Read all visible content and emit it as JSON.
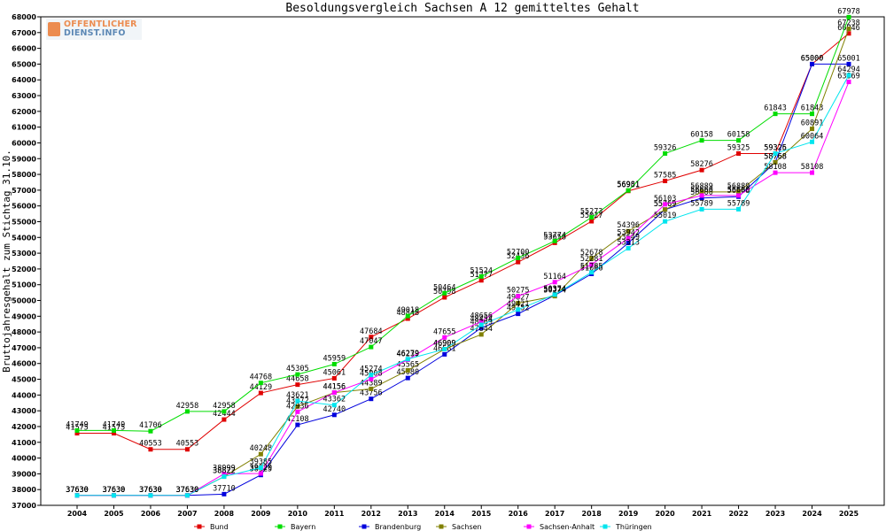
{
  "chart_data": {
    "type": "line",
    "title": "Besoldungsvergleich Sachsen A 12 gemitteltes Gehalt",
    "ylabel": "Bruttojahresgehalt zum Stichtag 31.10.",
    "xlabel": "",
    "ylim": [
      37000,
      68000
    ],
    "yticks": [
      37000,
      38000,
      39000,
      40000,
      41000,
      42000,
      43000,
      44000,
      45000,
      46000,
      47000,
      48000,
      49000,
      50000,
      51000,
      52000,
      53000,
      54000,
      55000,
      56000,
      57000,
      58000,
      59000,
      60000,
      61000,
      62000,
      63000,
      64000,
      65000,
      66000,
      67000,
      68000
    ],
    "categories": [
      "2004",
      "2005",
      "2006",
      "2007",
      "2008",
      "2009",
      "2010",
      "2011",
      "2012",
      "2013",
      "2014",
      "2015",
      "2016",
      "2017",
      "2018",
      "2019",
      "2020",
      "2021",
      "2022",
      "2023",
      "2024",
      "2025"
    ],
    "grid": false,
    "legend_position": "bottom",
    "series": [
      {
        "name": "Bund",
        "color": "#e00000",
        "values": [
          41575,
          41575,
          40553,
          40553,
          42444,
          44129,
          44658,
          45061,
          47684,
          48848,
          50198,
          51277,
          52436,
          53658,
          55027,
          56951,
          57585,
          58276,
          59325,
          59325,
          65000,
          66946
        ]
      },
      {
        "name": "Bayern",
        "color": "#00dd00",
        "values": [
          41749,
          41749,
          41706,
          42958,
          42958,
          44768,
          45305,
          45959,
          47047,
          49018,
          50464,
          51524,
          52700,
          53774,
          55273,
          56981,
          59326,
          60158,
          60158,
          61843,
          61843,
          67978
        ]
      },
      {
        "name": "Brandenburg",
        "color": "#0000dd",
        "values": [
          37630,
          37630,
          37630,
          37630,
          37710,
          38925,
          42108,
          42740,
          43756,
          45080,
          46581,
          48269,
          49152,
          50324,
          51686,
          53649,
          55769,
          56500,
          56588,
          58768,
          65000,
          65001
        ]
      },
      {
        "name": "Sachsen",
        "color": "#808000",
        "values": [
          37630,
          37630,
          37630,
          37630,
          38822,
          40248,
          43272,
          44156,
          44389,
          45565,
          46909,
          47844,
          49827,
          50274,
          52678,
          54396,
          55769,
          56889,
          56889,
          58768,
          60891,
          67238
        ]
      },
      {
        "name": "Sachsen-Anhalt",
        "color": "#ff00ff",
        "values": [
          37630,
          37630,
          37630,
          37630,
          38999,
          39020,
          42936,
          44156,
          45008,
          46239,
          47655,
          48656,
          50275,
          51164,
          52281,
          53942,
          56103,
          56660,
          56660,
          58108,
          58108,
          63869
        ]
      },
      {
        "name": "Thüringen",
        "color": "#00e5ee",
        "values": [
          37630,
          37630,
          37630,
          37630,
          38822,
          39385,
          43621,
          43362,
          45274,
          46279,
          46909,
          48454,
          49421,
          50374,
          51785,
          53313,
          55019,
          55789,
          55789,
          59326,
          60064,
          64294
        ]
      }
    ]
  }
}
